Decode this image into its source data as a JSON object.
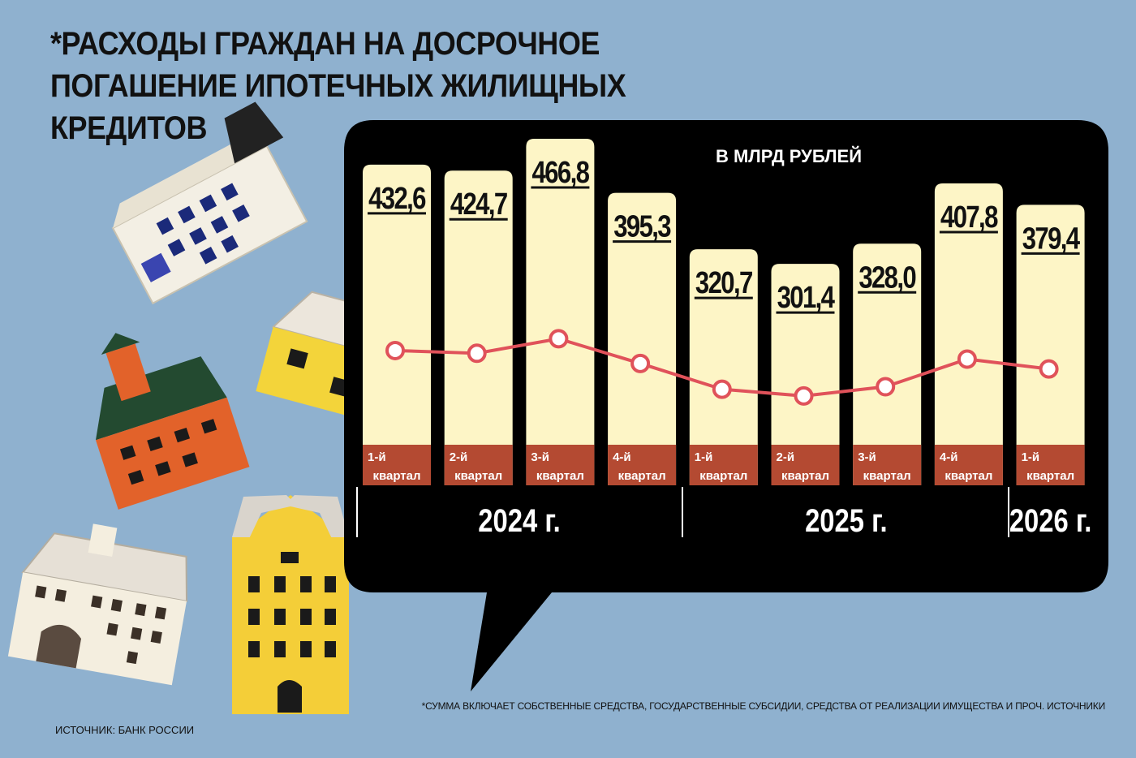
{
  "title_lines": [
    "*РАСХОДЫ ГРАЖДАН НА ДОСРОЧНОЕ",
    "ПОГАШЕНИЕ ИПОТЕЧНЫХ ЖИЛИЩНЫХ КРЕДИТОВ"
  ],
  "footnote": "*СУММА ВКЛЮЧАЕТ СОБСТВЕННЫЕ СРЕДСТВА, ГОСУДАРСТВЕННЫЕ СУБСИДИИ, СРЕДСТВА ОТ РЕАЛИЗАЦИИ ИМУЩЕСТВА И ПРОЧ. ИСТОЧНИКИ",
  "source": "ИСТОЧНИК: БАНК РОССИИ",
  "colors": {
    "background": "#8fb1cf",
    "panel": "#000000",
    "bar": "#fdf5c6",
    "quarter_label_bg": "#b44a32",
    "line": "#e0525a",
    "text_dark": "#111111",
    "text_light": "#ffffff"
  },
  "decorations": [
    "house-white-tilted",
    "house-yellow-small",
    "house-orange",
    "house-white-small",
    "house-yellow-tall"
  ],
  "chart_data": {
    "type": "bar",
    "unit_label": "В МЛРД РУБЛЕЙ",
    "categories": [
      {
        "quarter": [
          "1-й",
          "квартал"
        ],
        "year": "2024 г."
      },
      {
        "quarter": [
          "2-й",
          "квартал"
        ],
        "year": "2024 г."
      },
      {
        "quarter": [
          "3-й",
          "квартал"
        ],
        "year": "2024 г."
      },
      {
        "quarter": [
          "4-й",
          "квартал"
        ],
        "year": "2024 г."
      },
      {
        "quarter": [
          "1-й",
          "квартал"
        ],
        "year": "2025 г."
      },
      {
        "quarter": [
          "2-й",
          "квартал"
        ],
        "year": "2025 г."
      },
      {
        "quarter": [
          "3-й",
          "квартал"
        ],
        "year": "2025 г."
      },
      {
        "quarter": [
          "4-й",
          "квартал"
        ],
        "year": "2025 г."
      },
      {
        "quarter": [
          "1-й",
          "квартал"
        ],
        "year": "2026 г."
      }
    ],
    "values": [
      432.6,
      424.7,
      466.8,
      395.3,
      320.7,
      301.4,
      328.0,
      407.8,
      379.4
    ],
    "value_labels": [
      "432,6",
      "424,7",
      "466,8",
      "395,3",
      "320,7",
      "301,4",
      "328,0",
      "407,8",
      "379,4"
    ],
    "year_groups": [
      {
        "label": "2024 г.",
        "count": 4
      },
      {
        "label": "2025 г.",
        "count": 4
      },
      {
        "label": "2026 г.",
        "count": 1
      }
    ],
    "line_overlay": true
  }
}
